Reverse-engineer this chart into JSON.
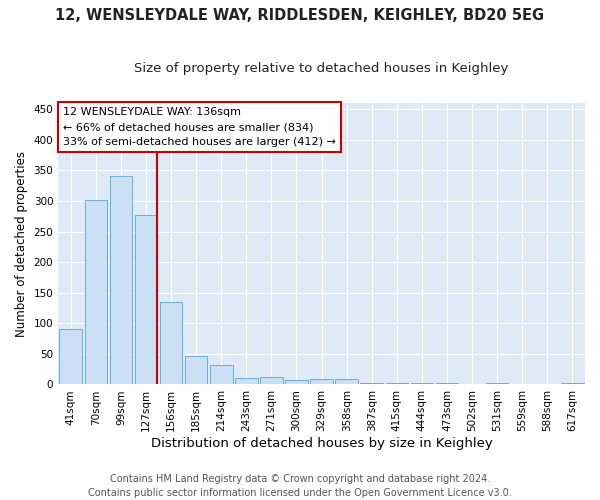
{
  "title": "12, WENSLEYDALE WAY, RIDDLESDEN, KEIGHLEY, BD20 5EG",
  "subtitle": "Size of property relative to detached houses in Keighley",
  "xlabel": "Distribution of detached houses by size in Keighley",
  "ylabel": "Number of detached properties",
  "categories": [
    "41sqm",
    "70sqm",
    "99sqm",
    "127sqm",
    "156sqm",
    "185sqm",
    "214sqm",
    "243sqm",
    "271sqm",
    "300sqm",
    "329sqm",
    "358sqm",
    "387sqm",
    "415sqm",
    "444sqm",
    "473sqm",
    "502sqm",
    "531sqm",
    "559sqm",
    "588sqm",
    "617sqm"
  ],
  "values": [
    90,
    302,
    340,
    277,
    134,
    47,
    31,
    10,
    13,
    7,
    9,
    9,
    3,
    2,
    2,
    3,
    0,
    2,
    0,
    0,
    3
  ],
  "bar_color": "#cce0f5",
  "bar_edge_color": "#6aaed6",
  "vline_x_index": 3,
  "vline_color": "#cc0000",
  "annotation_line1": "12 WENSLEYDALE WAY: 136sqm",
  "annotation_line2": "← 66% of detached houses are smaller (834)",
  "annotation_line3": "33% of semi-detached houses are larger (412) →",
  "annotation_box_facecolor": "#ffffff",
  "annotation_box_edgecolor": "#cc0000",
  "ylim": [
    0,
    460
  ],
  "yticks": [
    0,
    50,
    100,
    150,
    200,
    250,
    300,
    350,
    400,
    450
  ],
  "plot_bg_color": "#deeaf5",
  "fig_bg_color": "#ffffff",
  "grid_color": "#ffffff",
  "title_fontsize": 10.5,
  "subtitle_fontsize": 9.5,
  "xlabel_fontsize": 9.5,
  "ylabel_fontsize": 8.5,
  "tick_fontsize": 7.5,
  "annotation_fontsize": 8.0,
  "footer_fontsize": 7.0,
  "footer": "Contains HM Land Registry data © Crown copyright and database right 2024.\nContains public sector information licensed under the Open Government Licence v3.0."
}
